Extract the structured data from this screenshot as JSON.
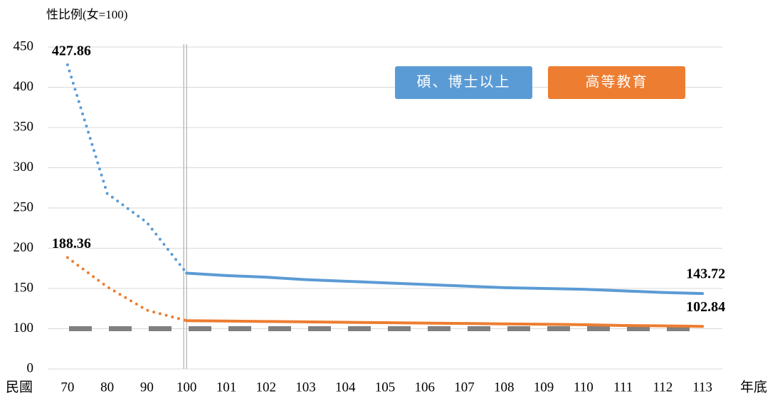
{
  "chart_data": {
    "type": "line",
    "y_axis_title": "性比例(女=100)",
    "x_axis_left_label": "民國",
    "x_axis_right_label": "年底",
    "categories": [
      "70",
      "80",
      "90",
      "100",
      "101",
      "102",
      "103",
      "104",
      "105",
      "106",
      "107",
      "108",
      "109",
      "110",
      "111",
      "112",
      "113"
    ],
    "series": [
      {
        "name": "碩、博士以上",
        "color": "#5b9bd5",
        "values": [
          427.86,
          268,
          232,
          169,
          166,
          164,
          161,
          159,
          157,
          155,
          153,
          151,
          150,
          149,
          147,
          145,
          143.72
        ]
      },
      {
        "name": "高等教育",
        "color": "#ed7d31",
        "values": [
          188.36,
          152,
          123,
          110,
          109.5,
          109,
          108.5,
          108,
          107.5,
          107,
          106.5,
          106,
          105.5,
          105,
          104,
          103.5,
          102.84
        ]
      }
    ],
    "ylim": [
      0,
      450
    ],
    "ybreak": [
      0,
      50
    ],
    "yticks": [
      0,
      100,
      150,
      200,
      250,
      300,
      350,
      400,
      450
    ],
    "grid": true,
    "dotted_through": 3,
    "divider_at": 3,
    "reference_line": 100,
    "labeled_points": [
      0,
      16
    ],
    "legend": "top-right"
  }
}
